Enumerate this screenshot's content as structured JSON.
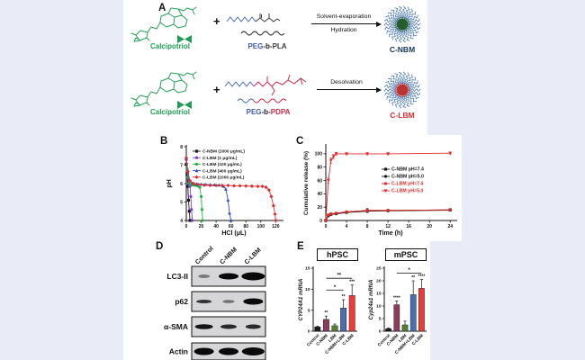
{
  "background": "#e9ebf7",
  "panel_bg": "#ffffff",
  "panel_a": {
    "label": "A",
    "drug_color": "#1f9d55",
    "corona_color": "#4a7ab5",
    "rows": [
      {
        "drug_label": "Calcipotriol",
        "plus": "+",
        "polymer": {
          "prefix": "PEG",
          "linker": "-b-",
          "suffix": "PLA",
          "prefix_color": "#3b5ba5",
          "suffix_color": "#3a3a3a"
        },
        "arrow_top": "Solvent-evaporation",
        "arrow_bottom": "Hydration",
        "product_label": "C-NBM",
        "product_color": "#16365c",
        "core_color": "#245c2d"
      },
      {
        "drug_label": "Calcipotriol",
        "plus": "+",
        "polymer": {
          "prefix": "PEG",
          "linker": "-b-",
          "suffix": "PDPA",
          "prefix_color": "#3b5ba5",
          "suffix_color": "#cc2a4a"
        },
        "arrow_top": "Desolvation",
        "arrow_bottom": "",
        "product_label": "C-LBM",
        "product_color": "#d93030",
        "core_color": "#bb3333"
      }
    ]
  },
  "chart_data": [
    {
      "id": "ph-titration",
      "panel_label": "B",
      "type": "line",
      "xlabel": "HCl (μL)",
      "ylabel": "pH",
      "xlim": [
        0,
        128
      ],
      "ylim": [
        4,
        8
      ],
      "xticks": [
        0,
        20,
        40,
        60,
        80,
        100,
        120
      ],
      "yticks": [
        4,
        5,
        6,
        7,
        8
      ],
      "legend_text_color": "#1a1a1a",
      "series": [
        {
          "name": "C-NBM (1000 μg/mL)",
          "color": "#1a1a1a",
          "marker": "square",
          "x": [
            0,
            1,
            2,
            3,
            4,
            5
          ],
          "y": [
            7.05,
            6.5,
            5.85,
            5.1,
            4.5,
            4.0
          ]
        },
        {
          "name": "C-LBM (1 μg/mL)",
          "color": "#7a3bd0",
          "marker": "circle",
          "x": [
            0,
            1,
            2,
            3,
            4,
            5,
            6,
            7,
            8
          ],
          "y": [
            7.3,
            6.75,
            6.3,
            6.0,
            5.9,
            5.85,
            5.3,
            4.6,
            4.0
          ]
        },
        {
          "name": "C-LBM (100 μg/mL)",
          "color": "#22b14c",
          "marker": "circle",
          "x": [
            0,
            1,
            2,
            4,
            6,
            9,
            12,
            15,
            18,
            20,
            21,
            22
          ],
          "y": [
            7.35,
            6.8,
            6.35,
            6.05,
            5.95,
            5.92,
            5.9,
            5.88,
            5.8,
            5.3,
            4.6,
            4.0
          ]
        },
        {
          "name": "C-LBM (400 μg/mL)",
          "color": "#2f4eb8",
          "marker": "triangle-up",
          "x": [
            0,
            2,
            4,
            8,
            14,
            20,
            26,
            32,
            38,
            44,
            50,
            53,
            56,
            58,
            60
          ],
          "y": [
            7.35,
            6.6,
            6.2,
            6.02,
            5.98,
            5.96,
            5.95,
            5.94,
            5.93,
            5.92,
            5.85,
            5.7,
            5.1,
            4.4,
            4.0
          ]
        },
        {
          "name": "C-LBM (1000 μg/mL)",
          "color": "#e02b2b",
          "marker": "diamond",
          "x": [
            0,
            2,
            5,
            10,
            16,
            24,
            32,
            40,
            48,
            56,
            64,
            72,
            80,
            88,
            96,
            102,
            107,
            111,
            114,
            117,
            119,
            120
          ],
          "y": [
            7.4,
            6.65,
            6.15,
            6.0,
            5.95,
            5.92,
            5.9,
            5.9,
            5.9,
            5.9,
            5.88,
            5.88,
            5.87,
            5.86,
            5.85,
            5.85,
            5.8,
            5.65,
            5.3,
            4.8,
            4.35,
            4.0
          ]
        }
      ]
    },
    {
      "id": "cumulative-release",
      "panel_label": "C",
      "type": "line",
      "xlabel": "Time (h)",
      "ylabel": "Cumulative release (%)",
      "xlim": [
        0,
        25
      ],
      "ylim": [
        0,
        112
      ],
      "xticks": [
        0,
        4,
        8,
        12,
        16,
        20,
        24
      ],
      "yticks": [
        0,
        20,
        40,
        60,
        80,
        100
      ],
      "legend_text_color": "series",
      "series": [
        {
          "name": "C-NBM pH=7.4",
          "color": "#1a1a1a",
          "marker": "square",
          "x": [
            0,
            0.5,
            1,
            2,
            4,
            8,
            12,
            24
          ],
          "y": [
            0,
            8,
            9.5,
            10.5,
            12.5,
            15,
            15,
            16
          ],
          "err": [
            0,
            1,
            1,
            1,
            1.5,
            3,
            1.5,
            2
          ]
        },
        {
          "name": "C-NBM pH=5.0",
          "color": "#1a1a1a",
          "marker": "circle",
          "x": [
            0,
            0.5,
            1,
            2,
            4,
            8,
            12,
            24
          ],
          "y": [
            0,
            7,
            9,
            10,
            12,
            14,
            14.5,
            15.5
          ],
          "err": [
            0,
            1,
            1,
            1,
            1,
            2,
            1.5,
            1.5
          ]
        },
        {
          "name": "C-LBM pH=7.4",
          "color": "#e02b2b",
          "marker": "circle",
          "x": [
            0,
            0.5,
            1,
            2,
            4,
            8,
            12,
            24
          ],
          "y": [
            0,
            8.5,
            10,
            11,
            13,
            15,
            15,
            16
          ],
          "err": [
            0,
            1,
            1,
            1,
            1,
            2,
            1.5,
            1.5
          ]
        },
        {
          "name": "C-LBM pH=5.0",
          "color": "#e02b2b",
          "marker": "triangle-down",
          "x": [
            0,
            0.5,
            1,
            1.5,
            2,
            4,
            8,
            12,
            24
          ],
          "y": [
            0,
            60,
            90,
            96,
            100,
            100,
            100,
            100,
            101
          ],
          "err": [
            0,
            4,
            4,
            3,
            2,
            1.5,
            1.5,
            1.5,
            1.5
          ]
        }
      ]
    },
    {
      "id": "hpsc",
      "type": "bar",
      "title": "hPSC",
      "ylabel": "CYP24A1 mRNA",
      "ylabel_italic": true,
      "categories": [
        "Control",
        "C-NBM",
        "LBM",
        "C-NBM+LBM",
        "C-LBM"
      ],
      "values": [
        1.0,
        2.8,
        1.3,
        5.5,
        8.5
      ],
      "errors": [
        0.2,
        0.8,
        0.4,
        2.0,
        2.5
      ],
      "stars": [
        "",
        "**",
        "",
        "**",
        "***"
      ],
      "bar_colors": [
        "#1a1a1a",
        "#8e3a5c",
        "#55802f",
        "#4a6fad",
        "#ef3b36"
      ],
      "ylim": [
        0,
        15
      ],
      "yticks": [
        0,
        5,
        10,
        15
      ],
      "sig_lines": [
        {
          "from": 1,
          "to": 3,
          "y": 9.8,
          "label": "*"
        },
        {
          "from": 1,
          "to": 4,
          "y": 12.6,
          "label": "**"
        }
      ]
    },
    {
      "id": "mpsc",
      "type": "bar",
      "title": "mPSC",
      "ylabel": "Cyp24a1 mRNA",
      "ylabel_italic": true,
      "categories": [
        "Control",
        "C-NBM",
        "LBM",
        "C-NBM+LBM",
        "C-LBM"
      ],
      "values": [
        1.0,
        10.5,
        2.5,
        14.5,
        17.0
      ],
      "errors": [
        0.3,
        1.5,
        1.5,
        5.5,
        3.5
      ],
      "stars": [
        "",
        "****",
        "",
        "**",
        "****"
      ],
      "bar_colors": [
        "#1a1a1a",
        "#8e3a5c",
        "#55802f",
        "#4a6fad",
        "#ef3b36"
      ],
      "ylim": [
        0,
        25
      ],
      "yticks": [
        0,
        5,
        10,
        15,
        20,
        25
      ],
      "sig_lines": [
        {
          "from": 1,
          "to": 4,
          "y": 23,
          "label": "*"
        }
      ]
    }
  ],
  "panel_d": {
    "label": "D",
    "lanes": [
      "Control",
      "C-NBM",
      "C-LBM"
    ],
    "box_fill": "#d6d6d8",
    "rows": [
      {
        "name": "LC3-II",
        "bands": [
          {
            "w": 13,
            "h": 4,
            "o": 0.45
          },
          {
            "w": 22,
            "h": 7,
            "o": 1
          },
          {
            "w": 26,
            "h": 9,
            "o": 1
          }
        ]
      },
      {
        "name": "p62",
        "bands": [
          {
            "w": 17,
            "h": 4,
            "o": 0.8
          },
          {
            "w": 13,
            "h": 3.5,
            "o": 0.5
          },
          {
            "w": 22,
            "h": 7,
            "o": 1
          }
        ]
      },
      {
        "name": "α-SMA",
        "bands": [
          {
            "w": 20,
            "h": 5.5,
            "o": 0.95
          },
          {
            "w": 18,
            "h": 5,
            "o": 0.85
          },
          {
            "w": 17,
            "h": 5,
            "o": 0.85
          }
        ]
      },
      {
        "name": "Actin",
        "bands": [
          {
            "w": 22,
            "h": 8,
            "o": 1
          },
          {
            "w": 22,
            "h": 8,
            "o": 1
          },
          {
            "w": 25,
            "h": 9,
            "o": 1
          }
        ]
      }
    ]
  },
  "panel_e_label": "E"
}
